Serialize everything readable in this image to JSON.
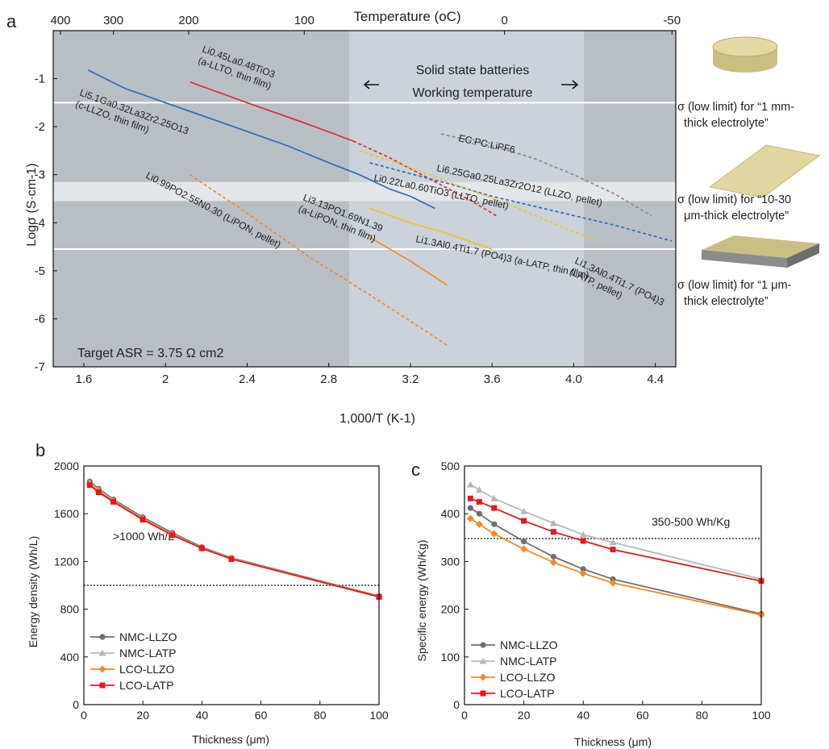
{
  "figure": {
    "panel_labels": [
      "a",
      "b",
      "c"
    ],
    "side_notes": [
      {
        "icon": "disc-icon",
        "lines": [
          "σ (low limit) for “1 mm-",
          "thick electrolyte”"
        ]
      },
      {
        "icon": "sheet-icon",
        "lines": [
          "σ (low limit) for “10-30",
          "μm-thick electrolyte”"
        ]
      },
      {
        "icon": "film-icon",
        "lines": [
          "σ (low limit) for “1 μm-",
          "thick electrolyte”"
        ]
      }
    ],
    "colors": {
      "region_dark": "#b9bec5",
      "region_light": "#ccd2da",
      "band": "#e4e6e9",
      "blue": "#2c6fb6",
      "red": "#d9312b",
      "orange": "#f08a2a",
      "yellow": "#f2c12e",
      "gray_dash": "#8a8a8a",
      "gray": "#6f6f6f",
      "light_gray": "#b8b8b8",
      "lco_red": "#e41a1c"
    }
  },
  "chart_data": [
    {
      "panel": "a",
      "type": "line",
      "title": "",
      "xlabel": "1,000/T (K-1)",
      "ylabel": "Logσ (S·cm-1)",
      "top_xlabel": "Temperature (oC)",
      "top_ticks": [
        "400",
        "300",
        "200",
        "100",
        "0",
        "-50"
      ],
      "top_tick_celsius": [
        400,
        300,
        200,
        100,
        0,
        -50
      ],
      "xlim": [
        1.45,
        4.5
      ],
      "ylim": [
        -7,
        0
      ],
      "xticks": [
        1.6,
        2,
        2.4,
        2.8,
        3.2,
        3.6,
        4.0,
        4.4
      ],
      "xtick_labels": [
        "1.6",
        "2",
        "2.4",
        "2.8",
        "3.2",
        "3.6",
        "4.0",
        "4.4"
      ],
      "yticks": [
        -1,
        -2,
        -3,
        -4,
        -5,
        -6,
        -7
      ],
      "ytick_labels": [
        "-1",
        "-2",
        "-3",
        "-4",
        "-5",
        "-6",
        "-7"
      ],
      "working_region": {
        "x": [
          2.9,
          4.05
        ],
        "label_lines": [
          "Solid state batteries",
          "Working temperature"
        ]
      },
      "band": [
        -3.55,
        -3.15
      ],
      "hlines": [
        -1.5,
        -4.55
      ],
      "annotation": "Target ASR = 3.75 Ω cm2",
      "series": [
        {
          "label_lines": [
            "Li5.1Ga0.32La3Zr2.25O13",
            "(c-LLZO, thin film)"
          ],
          "style": "solid",
          "color": "blue",
          "x": [
            1.62,
            1.8,
            2.0,
            2.2,
            2.4,
            2.6,
            2.8,
            2.95,
            3.1,
            3.2,
            3.32
          ],
          "y": [
            -0.82,
            -1.2,
            -1.5,
            -1.8,
            -2.1,
            -2.4,
            -2.75,
            -3.0,
            -3.3,
            -3.45,
            -3.7
          ]
        },
        {
          "label_lines": [
            "Li0.45La0.48TiO3",
            "(a-LLTO, thin film)"
          ],
          "style": "solid",
          "color": "red",
          "x": [
            2.12,
            2.4,
            2.7,
            2.92
          ],
          "y": [
            -1.07,
            -1.5,
            -1.95,
            -2.3
          ]
        },
        {
          "label_lines": [
            "Li0.22La0.60TiO3 (LLTO, pellet)"
          ],
          "style": "dash",
          "color": "red",
          "x": [
            2.92,
            3.1,
            3.3,
            3.5,
            3.62
          ],
          "y": [
            -2.3,
            -2.65,
            -3.1,
            -3.55,
            -3.85
          ]
        },
        {
          "label_lines": [
            "Li6.25Ga0.25La3Zr2O12 (LLZO, pellet)"
          ],
          "style": "dash",
          "color": "blue",
          "x": [
            3.0,
            3.2,
            3.4,
            3.6,
            3.8,
            4.0,
            4.2,
            4.48
          ],
          "y": [
            -2.75,
            -2.98,
            -3.2,
            -3.45,
            -3.65,
            -3.85,
            -4.05,
            -4.38
          ]
        },
        {
          "label_lines": [
            "EC:PC:LiPF6"
          ],
          "style": "dash",
          "color": "gray_dash",
          "x": [
            3.35,
            3.6,
            3.8,
            4.0,
            4.2,
            4.38
          ],
          "y": [
            -2.15,
            -2.4,
            -2.65,
            -3.0,
            -3.4,
            -3.85
          ]
        },
        {
          "label_lines": [
            "Li1.3Al0.4Ti1.7 (PO4)3",
            "(LATP, pellet)"
          ],
          "style": "dash",
          "color": "yellow",
          "x": [
            2.95,
            3.2,
            3.45,
            3.7,
            3.95,
            4.1
          ],
          "y": [
            -2.5,
            -2.85,
            -3.25,
            -3.65,
            -4.1,
            -4.35
          ]
        },
        {
          "label_lines": [
            "Li1.3Al0.4Ti1.7 (PO4)3 (a-LATP, thin film)"
          ],
          "style": "solid",
          "color": "yellow",
          "x": [
            3.0,
            3.2,
            3.4,
            3.6
          ],
          "y": [
            -3.7,
            -4.0,
            -4.25,
            -4.55
          ]
        },
        {
          "label_lines": [
            "Li3.13PO1.69N1.39",
            "(a-LiPON, thin film)"
          ],
          "style": "solid",
          "color": "orange",
          "x": [
            3.0,
            3.2,
            3.38
          ],
          "y": [
            -4.3,
            -4.8,
            -5.3
          ]
        },
        {
          "label_lines": [
            "Li0.99PO2.55N0.30 (LiPON, pellet)"
          ],
          "style": "dash",
          "color": "orange",
          "x": [
            2.12,
            2.4,
            2.7,
            3.0,
            3.2,
            3.38
          ],
          "y": [
            -3.0,
            -3.8,
            -4.7,
            -5.5,
            -6.05,
            -6.55
          ]
        }
      ]
    },
    {
      "panel": "b",
      "type": "line",
      "title": "",
      "xlabel": "Thickness (μm)",
      "ylabel": "Energy density (Wh/L)",
      "xlim": [
        0,
        100
      ],
      "ylim": [
        0,
        2000
      ],
      "xticks": [
        0,
        20,
        40,
        60,
        80,
        100
      ],
      "yticks": [
        0,
        400,
        800,
        1200,
        1600,
        2000
      ],
      "hline": {
        "y": 1000,
        "label": ">1000 Wh/L"
      },
      "x": [
        2,
        5,
        10,
        20,
        30,
        40,
        50,
        100
      ],
      "series": [
        {
          "name": "NMC-LLZO",
          "color": "gray",
          "marker": "circle",
          "values": [
            1870,
            1810,
            1720,
            1570,
            1440,
            1320,
            1230,
            910
          ]
        },
        {
          "name": "NMC-LATP",
          "color": "light_gray",
          "marker": "triangle",
          "values": [
            1860,
            1800,
            1710,
            1560,
            1430,
            1315,
            1225,
            905
          ]
        },
        {
          "name": "LCO-LLZO",
          "color": "orange",
          "marker": "diamond",
          "values": [
            1850,
            1790,
            1705,
            1555,
            1425,
            1310,
            1222,
            905
          ]
        },
        {
          "name": "LCO-LATP",
          "color": "lco_red",
          "marker": "square",
          "values": [
            1840,
            1780,
            1700,
            1550,
            1420,
            1310,
            1220,
            903
          ]
        }
      ]
    },
    {
      "panel": "c",
      "type": "line",
      "title": "",
      "xlabel": "Thickness (μm)",
      "ylabel": "Specific energy (Wh/Kg)",
      "xlim": [
        0,
        100
      ],
      "ylim": [
        0,
        500
      ],
      "xticks": [
        0,
        20,
        40,
        60,
        80,
        100
      ],
      "yticks": [
        0,
        100,
        200,
        300,
        400,
        500
      ],
      "hline": {
        "y": 348,
        "label": "350-500 Wh/Kg"
      },
      "x": [
        2,
        5,
        10,
        20,
        30,
        40,
        50,
        100
      ],
      "series": [
        {
          "name": "NMC-LLZO",
          "color": "gray",
          "marker": "circle",
          "values": [
            412,
            400,
            378,
            342,
            310,
            284,
            263,
            190
          ]
        },
        {
          "name": "NMC-LATP",
          "color": "light_gray",
          "marker": "triangle",
          "values": [
            461,
            450,
            432,
            405,
            380,
            356,
            340,
            263
          ]
        },
        {
          "name": "LCO-LLZO",
          "color": "orange",
          "marker": "diamond",
          "values": [
            390,
            378,
            358,
            326,
            298,
            275,
            255,
            188
          ]
        },
        {
          "name": "LCO-LATP",
          "color": "lco_red",
          "marker": "square",
          "values": [
            432,
            425,
            412,
            385,
            362,
            343,
            325,
            259
          ]
        }
      ]
    }
  ]
}
